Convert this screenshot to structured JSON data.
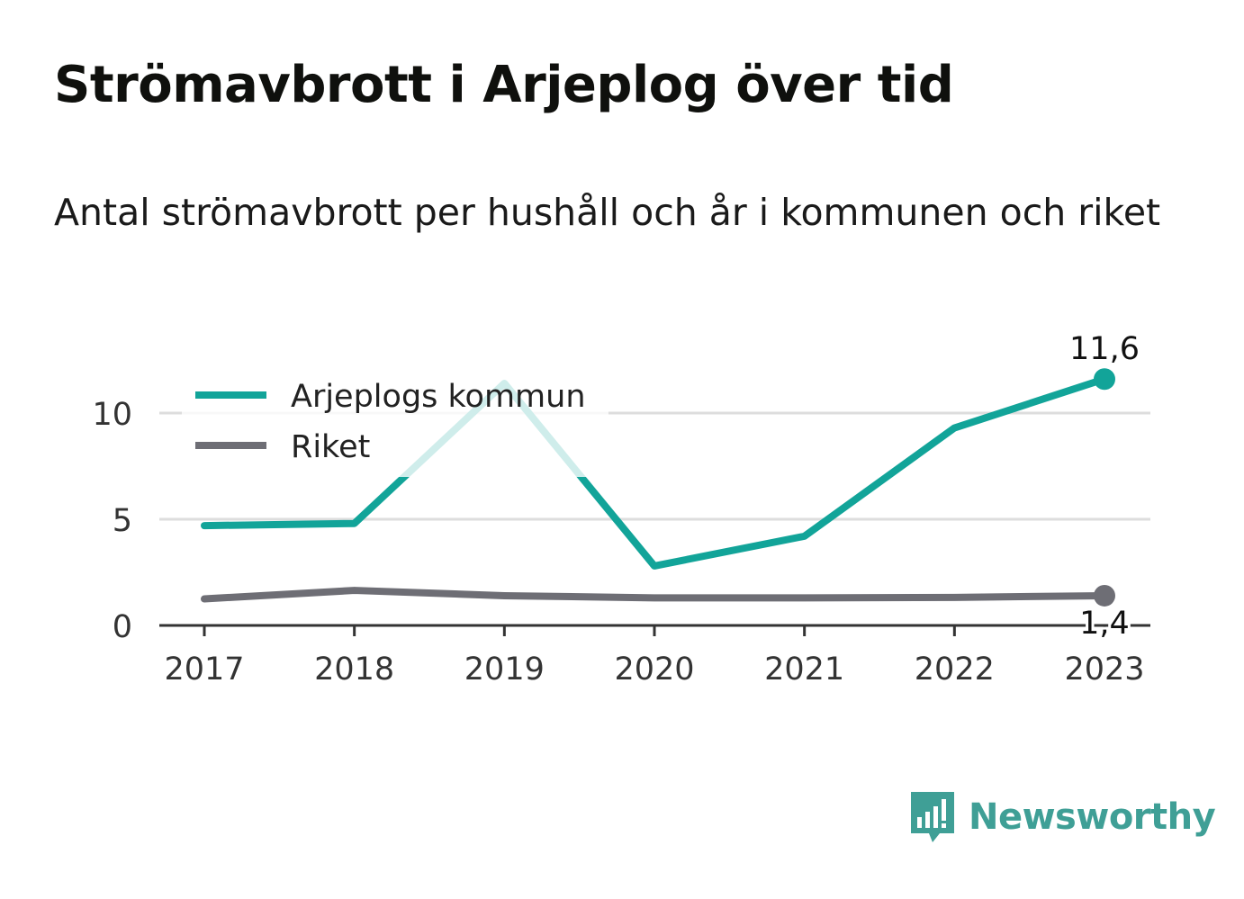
{
  "title": "Strömavbrott i Arjeplog över tid",
  "subtitle": "Antal strömavbrott per hushåll och år i kommunen och riket",
  "brand": {
    "name": "Newsworthy",
    "color": "#3f9f96",
    "icon": "bar-chart-speech-bubble-icon"
  },
  "chart_data": {
    "type": "line",
    "x": [
      "2017",
      "2018",
      "2019",
      "2020",
      "2021",
      "2022",
      "2023"
    ],
    "y_ticks": [
      "0",
      "5",
      "10"
    ],
    "ylim": [
      0,
      12
    ],
    "grid": true,
    "legend_position": "top-left",
    "series": [
      {
        "name": "Arjeplogs kommun",
        "color": "#12a499",
        "values": [
          4.7,
          4.8,
          11.4,
          2.8,
          4.2,
          9.3,
          11.6
        ],
        "end_label": "11,6"
      },
      {
        "name": "Riket",
        "color": "#6e6e75",
        "values": [
          1.25,
          1.65,
          1.4,
          1.3,
          1.3,
          1.32,
          1.4
        ],
        "end_label": "1,4"
      }
    ]
  }
}
